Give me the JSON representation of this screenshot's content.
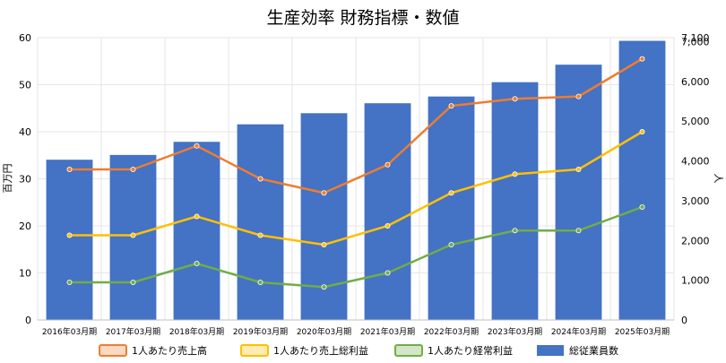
{
  "chart_data": {
    "type": "bar",
    "title": "生産効率 財務指標・数値",
    "categories": [
      "2016年03月期",
      "2017年03月期",
      "2018年03月期",
      "2019年03月期",
      "2020年03月期",
      "2021年03月期",
      "2022年03月期",
      "2023年03月期",
      "2024年03月期",
      "2025年03月期"
    ],
    "y_left": {
      "label": "百万円",
      "ylim": [
        0,
        60
      ],
      "ticks": [
        "0",
        "10",
        "20",
        "30",
        "40",
        "50",
        "60"
      ],
      "tick_values": [
        0,
        10,
        20,
        30,
        40,
        50,
        60
      ]
    },
    "y_right": {
      "label": "人",
      "ylim": [
        0,
        7100
      ],
      "ticks": [
        "0",
        "1,000",
        "2,000",
        "3,000",
        "4,000",
        "5,000",
        "6,000",
        "7,000",
        "7,100"
      ],
      "tick_values": [
        0,
        1000,
        2000,
        3000,
        4000,
        5000,
        6000,
        7000,
        7100
      ]
    },
    "grid": true,
    "legend_position": "bottom",
    "series": [
      {
        "name": "1人あたり売上高",
        "type": "line",
        "axis": "left",
        "color": "#ED7D31",
        "values": [
          32,
          32,
          37,
          30,
          27,
          33,
          45.5,
          47,
          47.5,
          55.5
        ]
      },
      {
        "name": "1人あたり売上総利益",
        "type": "line",
        "axis": "left",
        "color": "#FFC000",
        "values": [
          18,
          18,
          22,
          18,
          16,
          20,
          27,
          31,
          32,
          40
        ]
      },
      {
        "name": "1人あたり経常利益",
        "type": "line",
        "axis": "left",
        "color": "#70AD47",
        "values": [
          8,
          8,
          12,
          8,
          7,
          10,
          16,
          19,
          19,
          24
        ]
      },
      {
        "name": "総従業員数",
        "type": "bar",
        "axis": "right",
        "color": "#4472C4",
        "values": [
          4030,
          4150,
          4480,
          4920,
          5200,
          5450,
          5620,
          5980,
          6420,
          7020
        ]
      }
    ]
  }
}
